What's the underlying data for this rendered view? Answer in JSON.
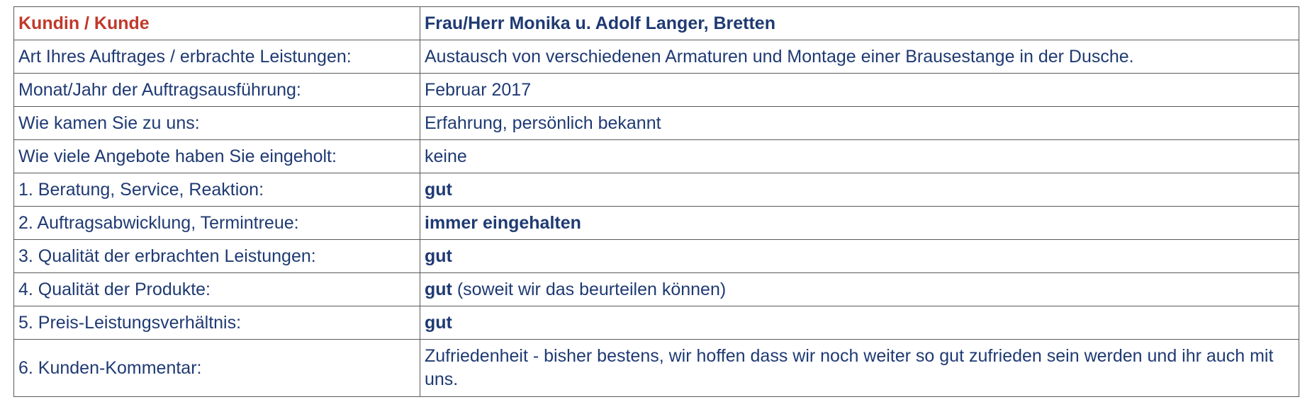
{
  "header": {
    "label": "Kundin / Kunde",
    "value": "Frau/Herr Monika u. Adolf Langer, Bretten"
  },
  "rows": [
    {
      "label": "Art Ihres Auftrages / erbrachte Leistungen:",
      "value": "Austausch von verschiedenen Armaturen und Montage einer Brausestange in der Dusche."
    },
    {
      "label": "Monat/Jahr der Auftragsausführung:",
      "value": "Februar 2017"
    },
    {
      "label": "Wie kamen Sie zu uns:",
      "value": "Erfahrung, persönlich bekannt"
    },
    {
      "label": "Wie viele Angebote haben Sie eingeholt:",
      "value": "keine"
    },
    {
      "label": "1. Beratung, Service, Reaktion:",
      "value": "gut"
    },
    {
      "label": "2. Auftragsabwicklung, Termintreue:",
      "value": "immer eingehalten"
    },
    {
      "label": "3. Qualität der erbrachten Leistungen:",
      "value": "gut"
    },
    {
      "label": "4. Qualität der Produkte:",
      "value": "gut",
      "note": " (soweit wir das beurteilen können)"
    },
    {
      "label": "5. Preis-Leistungsverhältnis:",
      "value": "gut"
    },
    {
      "label": "6. Kunden-Kommentar:",
      "value": "Zufriedenheit - bisher bestens, wir hoffen dass wir noch weiter so gut zufrieden sein werden und ihr auch mit uns."
    }
  ],
  "colors": {
    "header_label": "#c0392b",
    "text": "#1f3a73",
    "border": "#5a5a5a"
  }
}
